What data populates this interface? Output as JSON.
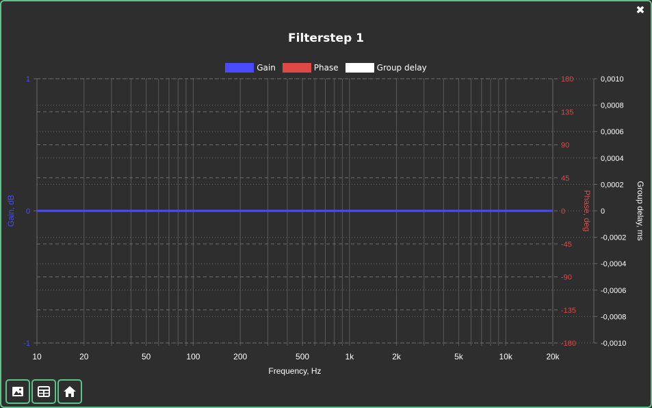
{
  "window": {
    "close_glyph": "✖"
  },
  "chart_data": {
    "type": "line",
    "title": "Filterstep 1",
    "xlabel": "Frequency, Hz",
    "x_scale": "log",
    "xlim": [
      10,
      20000
    ],
    "x_ticks": [
      {
        "value": 10,
        "label": "10"
      },
      {
        "value": 20,
        "label": "20"
      },
      {
        "value": 50,
        "label": "50"
      },
      {
        "value": 100,
        "label": "100"
      },
      {
        "value": 200,
        "label": "200"
      },
      {
        "value": 500,
        "label": "500"
      },
      {
        "value": 1000,
        "label": "1k"
      },
      {
        "value": 2000,
        "label": "2k"
      },
      {
        "value": 5000,
        "label": "5k"
      },
      {
        "value": 10000,
        "label": "10k"
      },
      {
        "value": 20000,
        "label": "20k"
      }
    ],
    "y_left": {
      "label": "Gain, dB",
      "ylim": [
        -1,
        1
      ],
      "ticks": [
        "1",
        "0",
        "-1"
      ],
      "color": "#4a4aff"
    },
    "y_right1": {
      "label": "Phase, deg",
      "ylim": [
        -180,
        180
      ],
      "ticks": [
        "180",
        "135",
        "90",
        "45",
        "0",
        "-45",
        "-90",
        "-135",
        "-180"
      ],
      "color": "#e04848"
    },
    "y_right2": {
      "label": "Group delay, ms",
      "ylim": [
        -0.001,
        0.001
      ],
      "ticks": [
        "0,0010",
        "0,0008",
        "0,0006",
        "0,0004",
        "0,0002",
        "0",
        "-0,0002",
        "-0,0004",
        "-0,0006",
        "-0,0008",
        "-0,0010"
      ],
      "color": "#ffffff"
    },
    "legend": [
      {
        "name": "Gain",
        "color": "#4a4aff"
      },
      {
        "name": "Phase",
        "color": "#e04848"
      },
      {
        "name": "Group delay",
        "color": "#ffffff"
      }
    ],
    "legend_position": "top",
    "series": [
      {
        "name": "Gain",
        "axis": "y_left",
        "x": [
          10,
          20000
        ],
        "values": [
          0,
          0
        ]
      }
    ],
    "grid": true
  },
  "toolbar": {
    "buttons": [
      {
        "name": "save-image-button",
        "icon": "image-icon"
      },
      {
        "name": "table-button",
        "icon": "table-icon"
      },
      {
        "name": "home-button",
        "icon": "home-icon"
      }
    ]
  }
}
